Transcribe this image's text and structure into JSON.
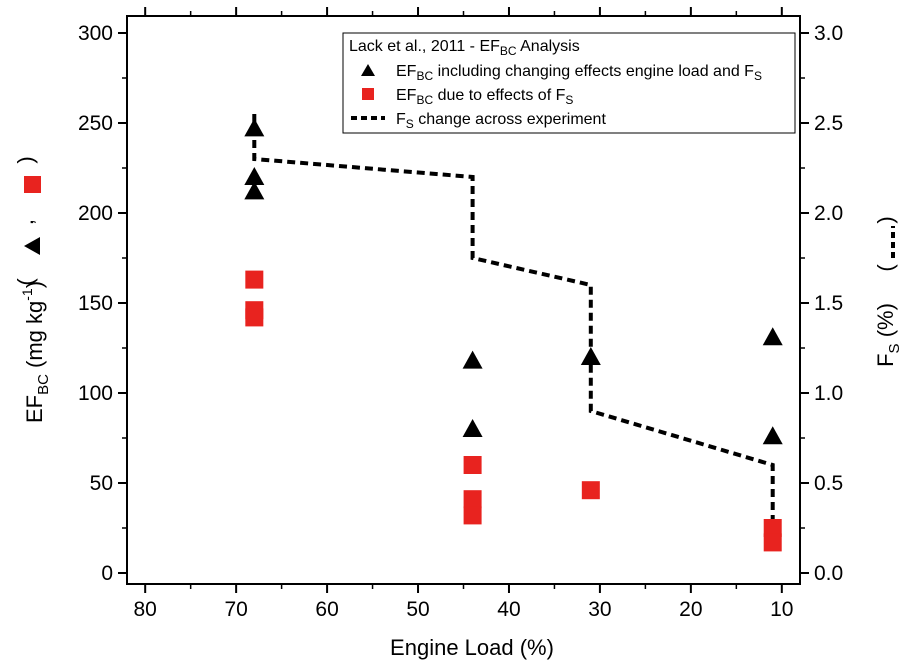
{
  "chart_data": {
    "type": "scatter",
    "title": "",
    "x_axis": {
      "label": "Engine Load (%)",
      "range": [
        82,
        8
      ],
      "reversed": true,
      "ticks": [
        80,
        70,
        60,
        50,
        40,
        30,
        20,
        10
      ]
    },
    "y_left": {
      "label_main": "EF",
      "label_sub": "BC",
      "label_unit": " (mg kg",
      "label_exp": "-1",
      "label_close": ")",
      "label_marks": "( ▲ , ■ )",
      "range": [
        0,
        300
      ],
      "ticks": [
        0,
        50,
        100,
        150,
        200,
        250,
        300
      ]
    },
    "y_right": {
      "label_main": "F",
      "label_sub": "S",
      "label_unit": " (%)",
      "label_marks": "( - - - )",
      "range": [
        0,
        3
      ],
      "ticks": [
        "0.0",
        "0.5",
        "1.0",
        "1.5",
        "2.0",
        "2.5",
        "3.0"
      ]
    },
    "legend": {
      "placement": "top-right",
      "title": {
        "pre": "Lack et al., 2011 - EF",
        "sub": "BC",
        "post": " Analysis"
      },
      "entries": [
        {
          "pre": "EF",
          "sub": "BC",
          "mid": " including changing effects engine load and F",
          "sub2": "S"
        },
        {
          "pre": "EF",
          "sub": "BC",
          "mid": " due to effects of F",
          "sub2": "S"
        },
        {
          "pre": "F",
          "sub": "S",
          "mid": " change across experiment",
          "sub2": ""
        }
      ]
    },
    "series": [
      {
        "name": "EF_BC including changing effects engine load and F_S",
        "marker": "triangle",
        "color": "#000000",
        "axis": "left",
        "points": [
          [
            68,
            247
          ],
          [
            68,
            220
          ],
          [
            68,
            212
          ],
          [
            44,
            118
          ],
          [
            44,
            80
          ],
          [
            31,
            120
          ],
          [
            11,
            131
          ],
          [
            11,
            76
          ]
        ]
      },
      {
        "name": "EF_BC due to effects of F_S",
        "marker": "square",
        "color": "#e8231f",
        "axis": "left",
        "points": [
          [
            68,
            163
          ],
          [
            68,
            146
          ],
          [
            68,
            142
          ],
          [
            44,
            60
          ],
          [
            44,
            41
          ],
          [
            44,
            32
          ],
          [
            31,
            46
          ],
          [
            11,
            25
          ],
          [
            11,
            17
          ]
        ]
      },
      {
        "name": "F_S change across experiment",
        "marker": "dashed-step-line",
        "color": "#000000",
        "axis": "right",
        "points": [
          [
            68,
            2.55
          ],
          [
            68,
            2.3
          ],
          [
            44,
            2.2
          ],
          [
            44,
            1.75
          ],
          [
            31,
            1.6
          ],
          [
            31,
            0.9
          ],
          [
            11,
            0.6
          ],
          [
            11,
            0.2
          ]
        ]
      }
    ]
  }
}
